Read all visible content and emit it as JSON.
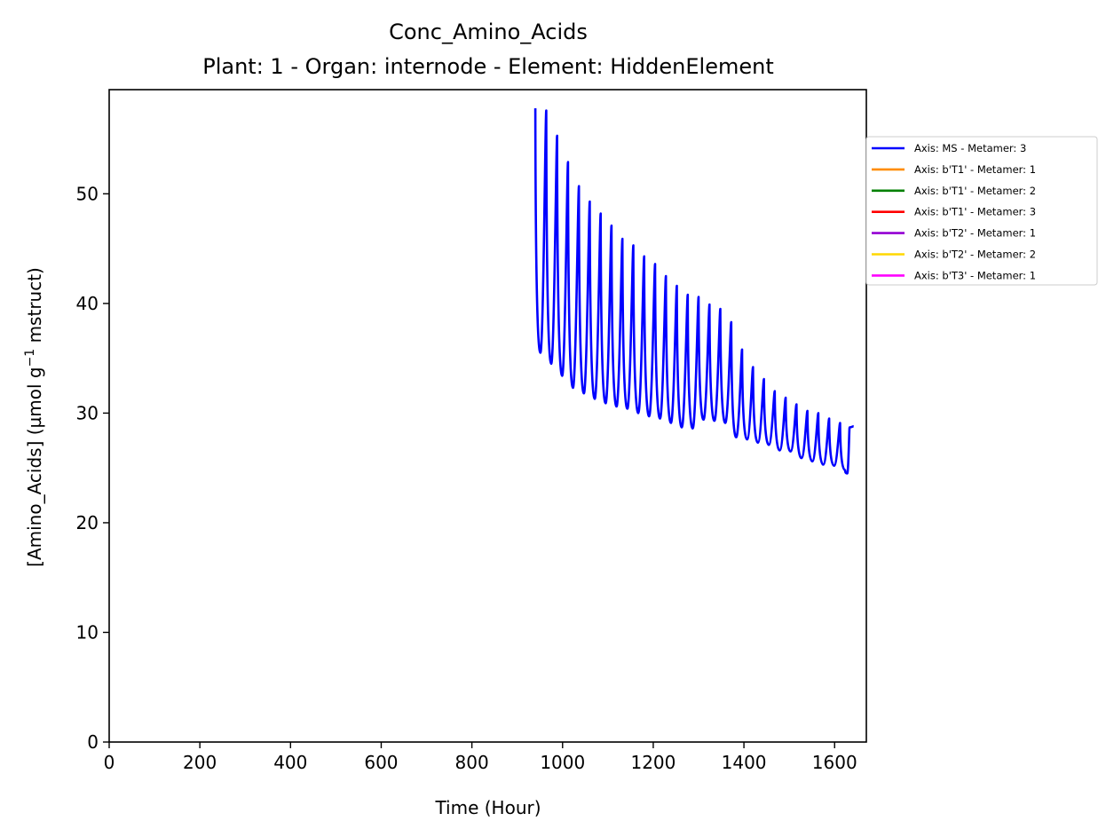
{
  "chart_data": {
    "type": "line",
    "title": "Conc_Amino_Acids",
    "subtitle": "Plant: 1 - Organ: internode - Element: HiddenElement",
    "xlabel": "Time (Hour)",
    "ylabel_main": "[Amino_Acids] (µmol g",
    "ylabel_sup": "−1",
    "ylabel_tail": " mstruct)",
    "xlim": [
      0,
      1670
    ],
    "ylim": [
      0,
      59.5
    ],
    "xticks": [
      0,
      200,
      400,
      600,
      800,
      1000,
      1200,
      1400,
      1600
    ],
    "yticks": [
      0,
      10,
      20,
      30,
      40,
      50
    ],
    "grid": false,
    "legend_position": "outside-right",
    "series": [
      {
        "name": "Axis: MS - Metamer: 3",
        "color": "#0000ff",
        "cycle_hours": 24,
        "peaks": [
          [
            940,
            57.8
          ],
          [
            964,
            57.6
          ],
          [
            988,
            55.3
          ],
          [
            1012,
            52.9
          ],
          [
            1036,
            50.7
          ],
          [
            1060,
            49.3
          ],
          [
            1084,
            48.2
          ],
          [
            1108,
            47.1
          ],
          [
            1132,
            45.9
          ],
          [
            1156,
            45.3
          ],
          [
            1180,
            44.3
          ],
          [
            1204,
            43.6
          ],
          [
            1228,
            42.5
          ],
          [
            1252,
            41.6
          ],
          [
            1276,
            40.8
          ],
          [
            1300,
            40.6
          ],
          [
            1324,
            39.9
          ],
          [
            1348,
            39.5
          ],
          [
            1372,
            38.3
          ],
          [
            1396,
            35.8
          ],
          [
            1420,
            34.2
          ],
          [
            1444,
            33.1
          ],
          [
            1468,
            32.0
          ],
          [
            1492,
            31.4
          ],
          [
            1516,
            30.8
          ],
          [
            1540,
            30.2
          ],
          [
            1564,
            30.0
          ],
          [
            1588,
            29.5
          ],
          [
            1612,
            29.1
          ],
          [
            1633,
            28.7
          ],
          [
            1642,
            28.8
          ]
        ],
        "troughs": [
          [
            951,
            35.5
          ],
          [
            975,
            34.5
          ],
          [
            999,
            33.4
          ],
          [
            1023,
            32.3
          ],
          [
            1047,
            31.8
          ],
          [
            1071,
            31.3
          ],
          [
            1095,
            30.9
          ],
          [
            1119,
            30.6
          ],
          [
            1143,
            30.4
          ],
          [
            1167,
            30.0
          ],
          [
            1191,
            29.7
          ],
          [
            1215,
            29.5
          ],
          [
            1239,
            29.1
          ],
          [
            1263,
            28.7
          ],
          [
            1287,
            28.6
          ],
          [
            1311,
            29.4
          ],
          [
            1335,
            29.3
          ],
          [
            1359,
            29.1
          ],
          [
            1383,
            27.8
          ],
          [
            1407,
            27.6
          ],
          [
            1431,
            27.3
          ],
          [
            1455,
            27.1
          ],
          [
            1479,
            26.6
          ],
          [
            1503,
            26.5
          ],
          [
            1527,
            25.9
          ],
          [
            1551,
            25.6
          ],
          [
            1575,
            25.3
          ],
          [
            1599,
            25.2
          ],
          [
            1623,
            24.8
          ],
          [
            1628,
            24.5
          ]
        ]
      },
      {
        "name": "Axis: b'T1' - Metamer: 1",
        "color": "#ff8c00"
      },
      {
        "name": "Axis: b'T1' - Metamer: 2",
        "color": "#008000"
      },
      {
        "name": "Axis: b'T1' - Metamer: 3",
        "color": "#ff0000"
      },
      {
        "name": "Axis: b'T2' - Metamer: 1",
        "color": "#9400d3"
      },
      {
        "name": "Axis: b'T2' - Metamer: 2",
        "color": "#ffd700"
      },
      {
        "name": "Axis: b'T3' - Metamer: 1",
        "color": "#ff00ff"
      }
    ]
  }
}
